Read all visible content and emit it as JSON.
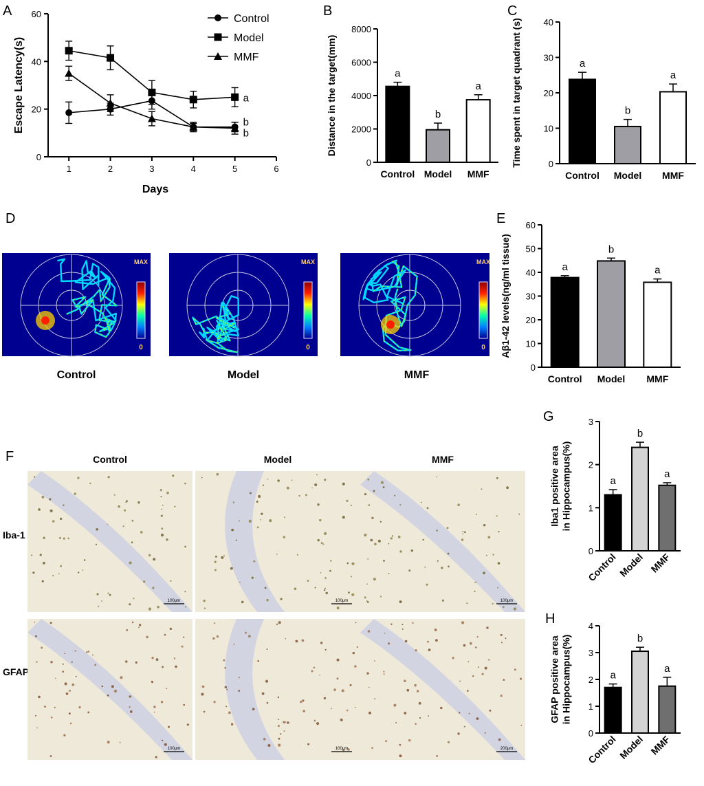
{
  "panels": {
    "A": "A",
    "B": "B",
    "C": "C",
    "D": "D",
    "E": "E",
    "F": "F",
    "G": "G",
    "H": "H"
  },
  "chart_data": [
    {
      "id": "A",
      "type": "line",
      "xlabel": "Days",
      "ylabel": "Escape Latency(s)",
      "xlim": [
        0.5,
        6
      ],
      "xticks": [
        1,
        2,
        3,
        4,
        5,
        6
      ],
      "ylim": [
        0,
        60
      ],
      "yticks": [
        0,
        20,
        40,
        60
      ],
      "legend_position": "top-right",
      "series": [
        {
          "name": "Control",
          "marker": "circle",
          "x": [
            1,
            2,
            3,
            4,
            5
          ],
          "values": [
            18.5,
            20,
            23.5,
            12.5,
            12.5
          ],
          "errors": [
            4.5,
            2.5,
            3.5,
            1.5,
            2.0
          ],
          "end_label": "b"
        },
        {
          "name": "Model",
          "marker": "square",
          "x": [
            1,
            2,
            3,
            4,
            5
          ],
          "values": [
            44.5,
            41.5,
            27,
            24,
            25
          ],
          "errors": [
            4.0,
            5.0,
            5.0,
            3.5,
            4.0
          ],
          "end_label": "a"
        },
        {
          "name": "MMF",
          "marker": "triangle",
          "x": [
            1,
            2,
            3,
            4,
            5
          ],
          "values": [
            35,
            22.5,
            16,
            12.5,
            12
          ],
          "errors": [
            3.0,
            3.5,
            3.0,
            2.0,
            2.5
          ],
          "end_label": "b"
        }
      ]
    },
    {
      "id": "B",
      "type": "bar",
      "ylabel": "Distance in the target(mm)",
      "ylim": [
        0,
        8000
      ],
      "yticks": [
        0,
        2000,
        4000,
        6000,
        8000
      ],
      "categories": [
        "Control",
        "Model",
        "MMF"
      ],
      "values": [
        4550,
        1950,
        3750
      ],
      "errors": [
        250,
        400,
        300
      ],
      "letters": [
        "a",
        "b",
        "a"
      ],
      "colors": [
        "#000000",
        "#9e9ea4",
        "#ffffff"
      ]
    },
    {
      "id": "C",
      "type": "bar",
      "ylabel": "Time spent in target quadrant (s)",
      "ylim": [
        0,
        40
      ],
      "yticks": [
        0,
        10,
        20,
        30,
        40
      ],
      "categories": [
        "Control",
        "Model",
        "MMF"
      ],
      "values": [
        23.8,
        10.5,
        20.3
      ],
      "errors": [
        2.0,
        2.0,
        2.2
      ],
      "letters": [
        "a",
        "b",
        "a"
      ],
      "colors": [
        "#000000",
        "#9e9ea4",
        "#ffffff"
      ]
    },
    {
      "id": "E",
      "type": "bar",
      "ylabel": "Aβ1-42 levels(ng/ml tissue)",
      "ylim": [
        0,
        60
      ],
      "yticks": [
        0,
        10,
        20,
        30,
        40,
        50,
        60
      ],
      "categories": [
        "Control",
        "Model",
        "MMF"
      ],
      "values": [
        37.8,
        44.8,
        35.8
      ],
      "errors": [
        0.8,
        1.2,
        1.4
      ],
      "letters": [
        "a",
        "b",
        "a"
      ],
      "colors": [
        "#000000",
        "#9e9ea4",
        "#ffffff"
      ]
    },
    {
      "id": "G",
      "type": "bar",
      "ylabel": "Iba1 positive area\nin Hippocampus(%)",
      "ylim": [
        0,
        3
      ],
      "yticks": [
        0,
        1,
        2,
        3
      ],
      "categories": [
        "Control",
        "Model",
        "MMF"
      ],
      "values": [
        1.3,
        2.4,
        1.52
      ],
      "errors": [
        0.12,
        0.12,
        0.06
      ],
      "letters": [
        "a",
        "b",
        "a"
      ],
      "colors": [
        "#000000",
        "#d4d4d4",
        "#6f6f6f"
      ]
    },
    {
      "id": "H",
      "type": "bar",
      "ylabel": "GFAP positive area\nin Hippocampus(%)",
      "ylim": [
        0,
        4
      ],
      "yticks": [
        0,
        1,
        2,
        3,
        4
      ],
      "categories": [
        "Control",
        "Model",
        "MMF"
      ],
      "values": [
        1.7,
        3.05,
        1.75
      ],
      "errors": [
        0.13,
        0.15,
        0.33
      ],
      "letters": [
        "a",
        "b",
        "a"
      ],
      "colors": [
        "#000000",
        "#d4d4d4",
        "#6f6f6f"
      ]
    }
  ],
  "maze": {
    "colorbar_top": "MAX",
    "colorbar_bottom": "0",
    "groups": [
      "Control",
      "Model",
      "MMF"
    ]
  },
  "histology": {
    "columns": [
      "Control",
      "Model",
      "MMF"
    ],
    "rows": [
      "Iba-1",
      "GFAP"
    ],
    "scalebars": [
      [
        "100μm",
        "100μm",
        "100μm"
      ],
      [
        "100μm",
        "100μm",
        "200μm"
      ]
    ]
  }
}
